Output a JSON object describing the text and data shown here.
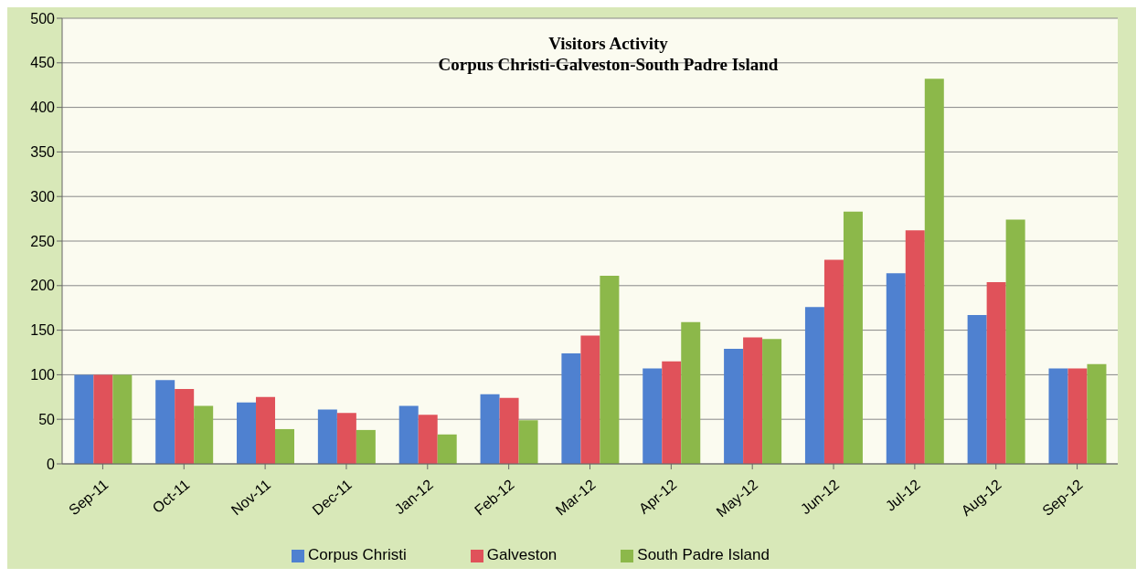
{
  "chart_data": {
    "type": "bar",
    "title": "Visitors Activity",
    "subtitle": "Corpus Christi-Galveston-South Padre Island",
    "categories": [
      "Sep-11",
      "Oct-11",
      "Nov-11",
      "Dec-11",
      "Jan-12",
      "Feb-12",
      "Mar-12",
      "Apr-12",
      "May-12",
      "Jun-12",
      "Jul-12",
      "Aug-12",
      "Sep-12"
    ],
    "series": [
      {
        "name": "Corpus Christi",
        "color": "#4f81d0",
        "values": [
          100,
          94,
          69,
          61,
          65,
          78,
          124,
          107,
          129,
          176,
          214,
          167,
          107
        ]
      },
      {
        "name": "Galveston",
        "color": "#e0525a",
        "values": [
          100,
          84,
          75,
          57,
          55,
          74,
          144,
          115,
          142,
          229,
          262,
          204,
          107
        ]
      },
      {
        "name": "South Padre Island",
        "color": "#8cb84a",
        "values": [
          100,
          65,
          39,
          38,
          33,
          49,
          211,
          159,
          140,
          283,
          432,
          274,
          112
        ]
      }
    ],
    "ylim": [
      0,
      500
    ],
    "yticks": [
      0,
      50,
      100,
      150,
      200,
      250,
      300,
      350,
      400,
      450,
      500
    ],
    "grid": "y",
    "legend": "bottom"
  }
}
